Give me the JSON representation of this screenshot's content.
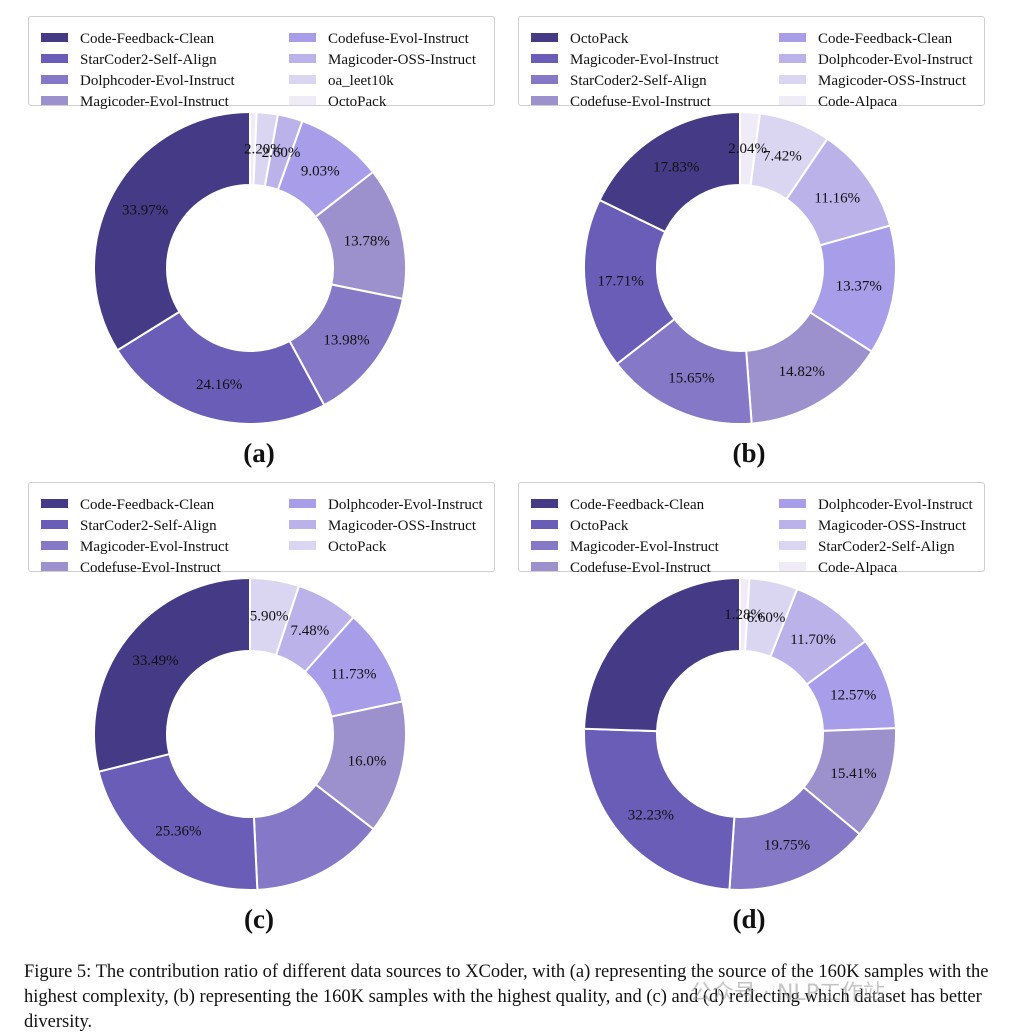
{
  "colors": [
    "#453a86",
    "#6a5db7",
    "#8578c6",
    "#9c91cc",
    "#a79de9",
    "#bbb2ea",
    "#dad6f2",
    "#efecf8"
  ],
  "chart_data": [
    {
      "type": "pie",
      "id": "a",
      "title": "(a)",
      "legend": [
        "Code-Feedback-Clean",
        "StarCoder2-Self-Align",
        "Dolphcoder-Evol-Instruct",
        "Magicoder-Evol-Instruct",
        "Codefuse-Evol-Instruct",
        "Magicoder-OSS-Instruct",
        "oa_leet10k",
        "OctoPack"
      ],
      "slices": [
        {
          "name": "OctoPack",
          "value": 0.68,
          "label": "",
          "color": 7
        },
        {
          "name": "oa_leet10k",
          "value": 2.2,
          "label": "2.20%",
          "color": 6
        },
        {
          "name": "Magicoder-OSS-Instruct",
          "value": 2.6,
          "label": "2.60%",
          "color": 5
        },
        {
          "name": "Codefuse-Evol-Instruct",
          "value": 9.03,
          "label": "9.03%",
          "color": 4
        },
        {
          "name": "Magicoder-Evol-Instruct",
          "value": 13.78,
          "label": "13.78%",
          "color": 3
        },
        {
          "name": "Dolphcoder-Evol-Instruct",
          "value": 13.98,
          "label": "13.98%",
          "color": 2
        },
        {
          "name": "StarCoder2-Self-Align",
          "value": 24.16,
          "label": "24.16%",
          "color": 1
        },
        {
          "name": "Code-Feedback-Clean",
          "value": 33.97,
          "label": "33.97%",
          "color": 0
        }
      ]
    },
    {
      "type": "pie",
      "id": "b",
      "title": "(b)",
      "legend": [
        "OctoPack",
        "Magicoder-Evol-Instruct",
        "StarCoder2-Self-Align",
        "Codefuse-Evol-Instruct",
        "Code-Feedback-Clean",
        "Dolphcoder-Evol-Instruct",
        "Magicoder-OSS-Instruct",
        "Code-Alpaca"
      ],
      "slices": [
        {
          "name": "Code-Alpaca",
          "value": 2.04,
          "label": "2.04%",
          "color": 7
        },
        {
          "name": "Magicoder-OSS-Instruct",
          "value": 7.42,
          "label": "7.42%",
          "color": 6
        },
        {
          "name": "Dolphcoder-Evol-Instruct",
          "value": 11.16,
          "label": "11.16%",
          "color": 5
        },
        {
          "name": "Code-Feedback-Clean",
          "value": 13.37,
          "label": "13.37%",
          "color": 4
        },
        {
          "name": "Codefuse-Evol-Instruct",
          "value": 14.82,
          "label": "14.82%",
          "color": 3
        },
        {
          "name": "StarCoder2-Self-Align",
          "value": 15.65,
          "label": "15.65%",
          "color": 2
        },
        {
          "name": "Magicoder-Evol-Instruct",
          "value": 17.71,
          "label": "17.71%",
          "color": 1
        },
        {
          "name": "OctoPack",
          "value": 17.83,
          "label": "17.83%",
          "color": 0
        }
      ]
    },
    {
      "type": "pie",
      "id": "c",
      "title": "(c)",
      "legend": [
        "Code-Feedback-Clean",
        "StarCoder2-Self-Align",
        "Magicoder-Evol-Instruct",
        "Codefuse-Evol-Instruct",
        "Dolphcoder-Evol-Instruct",
        "Magicoder-OSS-Instruct",
        "OctoPack"
      ],
      "slices": [
        {
          "name": "OctoPack",
          "value": 5.9,
          "label": "5.90%",
          "color": 6
        },
        {
          "name": "Magicoder-OSS-Instruct",
          "value": 7.48,
          "label": "7.48%",
          "color": 5
        },
        {
          "name": "Dolphcoder-Evol-Instruct",
          "value": 11.73,
          "label": "11.73%",
          "color": 4
        },
        {
          "name": "Codefuse-Evol-Instruct",
          "value": 16.0,
          "label": "16.0%",
          "color": 3
        },
        {
          "name": "Magicoder-Evol-Instruct",
          "value": 16.0,
          "label": "",
          "color": 2
        },
        {
          "name": "StarCoder2-Self-Align",
          "value": 25.36,
          "label": "25.36%",
          "color": 1
        },
        {
          "name": "Code-Feedback-Clean",
          "value": 33.49,
          "label": "33.49%",
          "color": 0
        }
      ]
    },
    {
      "type": "pie",
      "id": "d",
      "title": "(d)",
      "legend": [
        "Code-Feedback-Clean",
        "OctoPack",
        "Magicoder-Evol-Instruct",
        "Codefuse-Evol-Instruct",
        "Dolphcoder-Evol-Instruct",
        "Magicoder-OSS-Instruct",
        "StarCoder2-Self-Align",
        "Code-Alpaca"
      ],
      "slices": [
        {
          "name": "Code-Alpaca",
          "value": 1.28,
          "label": "1.28%",
          "color": 7
        },
        {
          "name": "StarCoder2-Self-Align",
          "value": 6.6,
          "label": "6.60%",
          "color": 6
        },
        {
          "name": "Magicoder-OSS-Instruct",
          "value": 11.7,
          "label": "11.70%",
          "color": 5
        },
        {
          "name": "Dolphcoder-Evol-Instruct",
          "value": 12.57,
          "label": "12.57%",
          "color": 4
        },
        {
          "name": "Codefuse-Evol-Instruct",
          "value": 15.41,
          "label": "15.41%",
          "color": 3
        },
        {
          "name": "Magicoder-Evol-Instruct",
          "value": 19.75,
          "label": "19.75%",
          "color": 2
        },
        {
          "name": "OctoPack",
          "value": 32.23,
          "label": "32.23%",
          "color": 1
        },
        {
          "name": "Code-Feedback-Clean",
          "value": 32.23,
          "label": "",
          "color": 0
        }
      ]
    }
  ],
  "caption": "Figure 5: The contribution ratio of different data sources to XCoder, with (a) representing the source of the 160K samples with the highest complexity, (b) representing the 160K samples with the highest quality, and (c) and (d) reflecting which dataset has better diversity.",
  "watermark": "公众号 · NLP工作站"
}
